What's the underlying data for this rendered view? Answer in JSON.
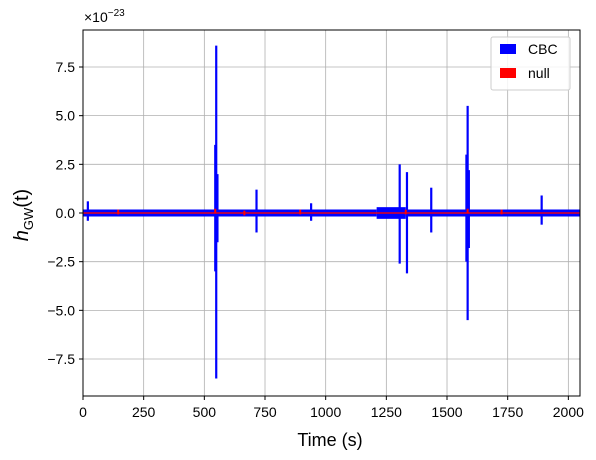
{
  "chart_data": {
    "type": "line",
    "title": "",
    "xlabel": "Time (s)",
    "ylabel_main": "h",
    "ylabel_sub": "GW",
    "ylabel_arg": "(t)",
    "offset_text_base": "×10",
    "offset_text_exp": "−23",
    "xlim": [
      0,
      2048
    ],
    "ylim": [
      -9.4,
      9.4
    ],
    "x_ticks": [
      0,
      250,
      500,
      750,
      1000,
      1250,
      1500,
      1750,
      2000
    ],
    "x_tick_labels": [
      "0",
      "250",
      "500",
      "750",
      "1000",
      "1250",
      "1500",
      "1750",
      "2000"
    ],
    "y_ticks": [
      -7.5,
      -5.0,
      -2.5,
      0.0,
      2.5,
      5.0,
      7.5
    ],
    "y_tick_labels": [
      "−7.5",
      "−5.0",
      "−2.5",
      "0.0",
      "2.5",
      "5.0",
      "7.5"
    ],
    "grid": true,
    "legend_position": "top-right",
    "noise_band": [
      {
        "x0": 0,
        "x1": 1210,
        "amp": 0.18
      },
      {
        "x0": 1210,
        "x1": 1330,
        "amp": 0.3
      },
      {
        "x0": 1330,
        "x1": 2048,
        "amp": 0.18
      }
    ],
    "series": [
      {
        "name": "CBC",
        "color": "#0000ff",
        "spikes": [
          {
            "x": 20,
            "max": 0.6,
            "min": -0.4
          },
          {
            "x": 545,
            "max": 3.5,
            "min": -3.0
          },
          {
            "x": 549,
            "max": 8.6,
            "min": -8.5
          },
          {
            "x": 554,
            "max": 2.0,
            "min": -1.5
          },
          {
            "x": 715,
            "max": 1.2,
            "min": -1.0
          },
          {
            "x": 940,
            "max": 0.5,
            "min": -0.4
          },
          {
            "x": 1305,
            "max": 2.5,
            "min": -2.6
          },
          {
            "x": 1335,
            "max": 2.1,
            "min": -3.1
          },
          {
            "x": 1435,
            "max": 1.3,
            "min": -1.0
          },
          {
            "x": 1580,
            "max": 3.0,
            "min": -2.5
          },
          {
            "x": 1585,
            "max": 5.5,
            "min": -5.5
          },
          {
            "x": 1590,
            "max": 2.2,
            "min": -1.8
          },
          {
            "x": 1890,
            "max": 0.9,
            "min": -0.6
          }
        ]
      },
      {
        "name": "null",
        "color": "#ff0000",
        "level": 0.0,
        "markers": [
          {
            "x": 145,
            "y": 0.05
          },
          {
            "x": 545,
            "y": 0.1
          },
          {
            "x": 665,
            "y": 0.0
          },
          {
            "x": 895,
            "y": 0.05
          },
          {
            "x": 1330,
            "y": 0.05
          },
          {
            "x": 1585,
            "y": 0.1
          },
          {
            "x": 1725,
            "y": 0.05
          }
        ]
      }
    ]
  }
}
